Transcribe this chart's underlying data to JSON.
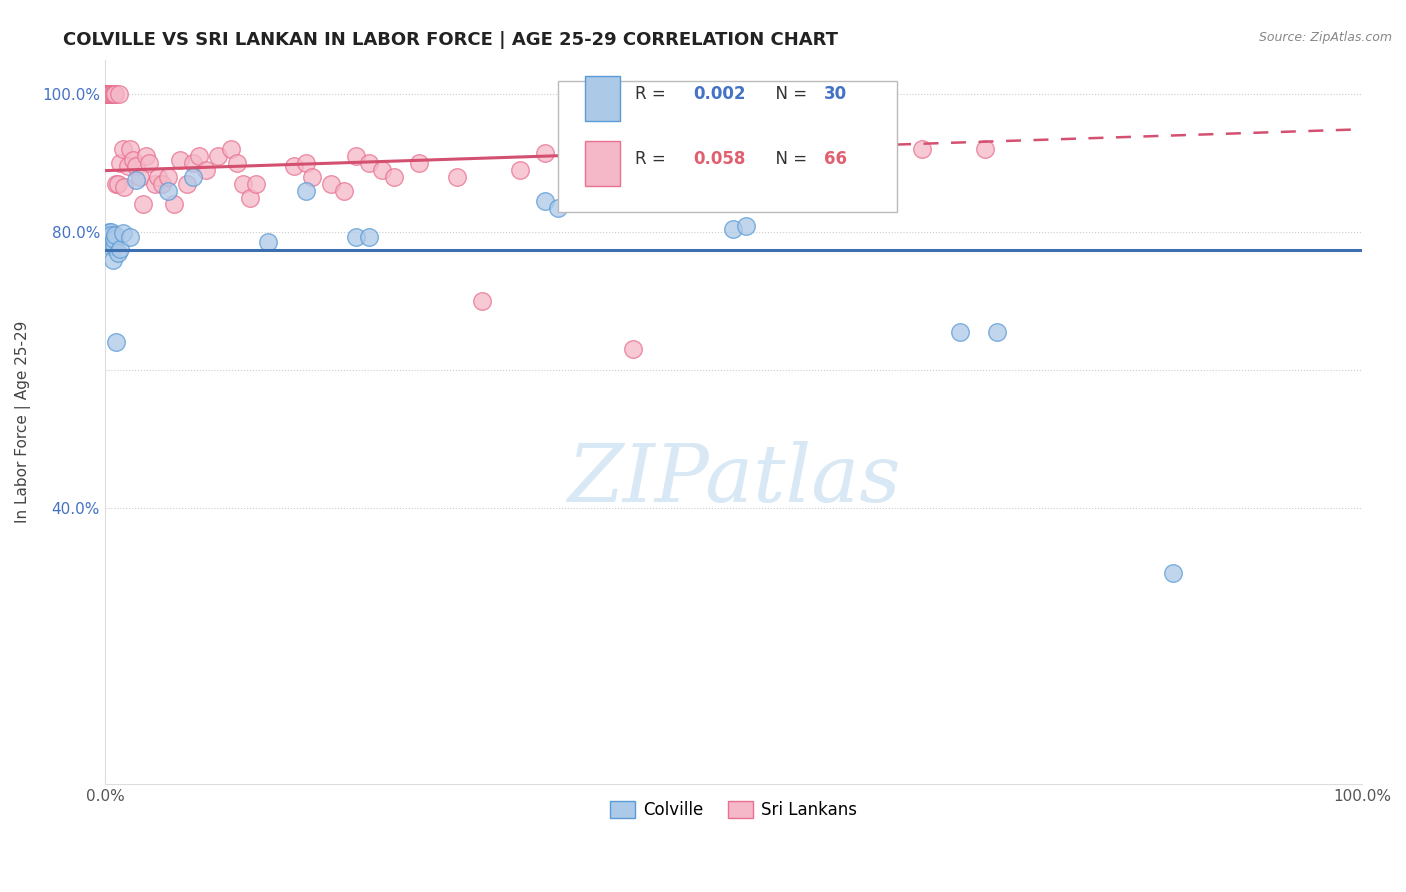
{
  "title": "COLVILLE VS SRI LANKAN IN LABOR FORCE | AGE 25-29 CORRELATION CHART",
  "source": "Source: ZipAtlas.com",
  "ylabel": "In Labor Force | Age 25-29",
  "xlim": [
    0.0,
    1.0
  ],
  "ylim": [
    0.0,
    1.05
  ],
  "colville_R": 0.002,
  "colville_N": 30,
  "srilanka_R": 0.058,
  "srilanka_N": 66,
  "colville_color": "#adc9e8",
  "srilanka_color": "#f5b8c8",
  "colville_edge_color": "#5b9bd5",
  "srilanka_edge_color": "#e87090",
  "colville_line_color": "#3c6fb0",
  "srilanka_line_color": "#d45070",
  "watermark_color": "#d8e8f4",
  "ytick_color": "#4472c4",
  "colville_x": [
    0.002,
    0.003,
    0.003,
    0.004,
    0.005,
    0.005,
    0.006,
    0.006,
    0.007,
    0.007,
    0.008,
    0.009,
    0.01,
    0.012,
    0.014,
    0.02,
    0.025,
    0.05,
    0.13,
    0.16,
    0.2,
    0.21,
    0.35,
    0.36,
    0.5,
    0.51,
    0.68,
    0.71,
    0.85,
    0.07
  ],
  "colville_y": [
    0.795,
    0.795,
    0.8,
    0.78,
    0.8,
    0.795,
    0.76,
    0.785,
    0.78,
    0.79,
    0.795,
    0.64,
    0.77,
    0.775,
    0.798,
    0.793,
    0.875,
    0.86,
    0.785,
    0.86,
    0.793,
    0.793,
    0.845,
    0.835,
    0.805,
    0.808,
    0.655,
    0.655,
    0.305,
    0.88
  ],
  "srilanka_x": [
    0.001,
    0.001,
    0.002,
    0.002,
    0.002,
    0.003,
    0.003,
    0.003,
    0.004,
    0.004,
    0.005,
    0.005,
    0.006,
    0.007,
    0.008,
    0.009,
    0.01,
    0.011,
    0.012,
    0.014,
    0.015,
    0.018,
    0.02,
    0.022,
    0.025,
    0.028,
    0.03,
    0.033,
    0.035,
    0.04,
    0.042,
    0.045,
    0.05,
    0.055,
    0.06,
    0.065,
    0.07,
    0.075,
    0.08,
    0.09,
    0.1,
    0.105,
    0.11,
    0.115,
    0.12,
    0.15,
    0.16,
    0.165,
    0.18,
    0.19,
    0.2,
    0.21,
    0.22,
    0.23,
    0.25,
    0.28,
    0.3,
    0.33,
    0.35,
    0.38,
    0.42,
    0.5,
    0.55,
    0.58,
    0.65,
    0.7
  ],
  "srilanka_y": [
    1.0,
    1.0,
    1.0,
    1.0,
    1.0,
    1.0,
    1.0,
    1.0,
    1.0,
    1.0,
    1.0,
    1.0,
    1.0,
    1.0,
    1.0,
    0.87,
    0.87,
    1.0,
    0.9,
    0.92,
    0.865,
    0.895,
    0.92,
    0.905,
    0.895,
    0.88,
    0.84,
    0.91,
    0.9,
    0.87,
    0.88,
    0.87,
    0.88,
    0.84,
    0.905,
    0.87,
    0.9,
    0.91,
    0.89,
    0.91,
    0.92,
    0.9,
    0.87,
    0.85,
    0.87,
    0.895,
    0.9,
    0.88,
    0.87,
    0.86,
    0.91,
    0.9,
    0.89,
    0.88,
    0.9,
    0.88,
    0.7,
    0.89,
    0.915,
    0.91,
    0.63,
    0.9,
    0.895,
    0.89,
    0.92,
    0.92
  ]
}
